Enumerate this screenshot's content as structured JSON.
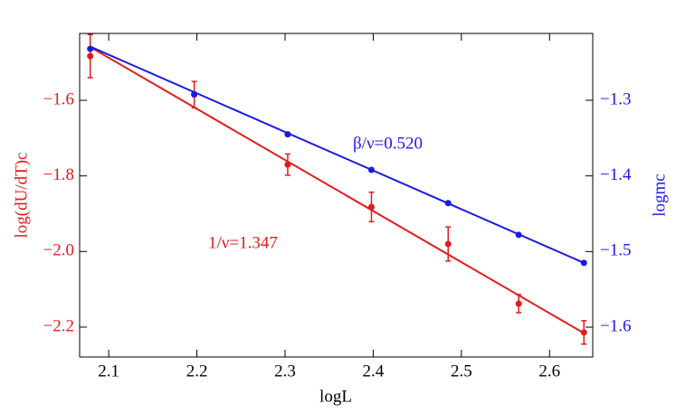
{
  "chart_data": {
    "type": "line",
    "x_label": "logL",
    "y_label": "log(dU/dT)c",
    "y2_label": "logmc",
    "xlim": [
      2.067,
      2.649
    ],
    "xticks": [
      2.1,
      2.2,
      2.3,
      2.4,
      2.5,
      2.6
    ],
    "ylim": [
      -2.279,
      -1.423
    ],
    "yticks": [
      {
        "value": -1.6,
        "label": "−1.6"
      },
      {
        "value": -1.8,
        "label": "−1.8"
      },
      {
        "value": -2.0,
        "label": "−2.0"
      },
      {
        "value": -2.2,
        "label": "−2.2"
      }
    ],
    "y2lim": [
      -1.6394,
      -1.2116
    ],
    "y2ticks": [
      {
        "value": -1.3,
        "label": "−1.3"
      },
      {
        "value": -1.4,
        "label": "−1.4"
      },
      {
        "value": -1.5,
        "label": "−1.5"
      },
      {
        "value": -1.6,
        "label": "−1.6"
      }
    ],
    "x": [
      2.079,
      2.197,
      2.303,
      2.398,
      2.485,
      2.565,
      2.639
    ],
    "series": [
      {
        "color": "#e41a1a",
        "axis": "y",
        "values": [
          -1.483,
          -1.585,
          -1.77,
          -1.882,
          -1.98,
          -2.138,
          -2.214
        ],
        "errors": [
          0.057,
          0.035,
          0.028,
          0.039,
          0.045,
          0.024,
          0.031
        ],
        "fit": [
          -1.459,
          -2.216
        ],
        "annotation": "1/ν=1.347"
      },
      {
        "color": "#1a1ae4",
        "axis": "y2",
        "values": [
          -1.232,
          -1.292,
          -1.345,
          -1.392,
          -1.436,
          -1.478,
          -1.515
        ],
        "fit": [
          -1.229,
          -1.515
        ],
        "annotation": "β/ν=0.520"
      }
    ]
  }
}
